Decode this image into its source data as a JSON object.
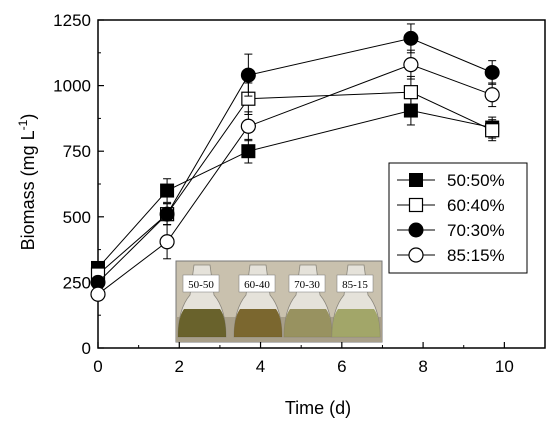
{
  "chart_data": {
    "type": "line",
    "xlabel": "Time (d)",
    "ylabel": "Biomass (mg L",
    "ylabel_unit_exponent": "-1",
    "ylabel_close": ")",
    "xlim": [
      0,
      11
    ],
    "ylim": [
      0,
      1250
    ],
    "xticks": [
      0,
      2,
      4,
      6,
      8,
      10
    ],
    "yticks": [
      0,
      250,
      500,
      750,
      1000,
      1250
    ],
    "x": [
      0,
      1.7,
      3.7,
      7.7,
      9.7
    ],
    "legend_position": "right",
    "grid": false,
    "series": [
      {
        "name": "50:50%",
        "marker": "filled-square",
        "values": [
          305,
          600,
          750,
          905,
          840
        ],
        "errors": [
          0,
          45,
          45,
          55,
          40
        ]
      },
      {
        "name": "60:40%",
        "marker": "open-square",
        "values": [
          280,
          510,
          950,
          975,
          830
        ],
        "errors": [
          0,
          40,
          60,
          60,
          40
        ]
      },
      {
        "name": "70:30%",
        "marker": "filled-circle",
        "values": [
          250,
          510,
          1040,
          1180,
          1050
        ],
        "errors": [
          0,
          40,
          80,
          55,
          45
        ]
      },
      {
        "name": "85:15%",
        "marker": "open-circle",
        "values": [
          205,
          405,
          845,
          1080,
          965
        ],
        "errors": [
          0,
          65,
          55,
          55,
          45
        ]
      }
    ],
    "inset": {
      "description": "photo",
      "labels": [
        "50-50",
        "60-40",
        "70-30",
        "85-15"
      ]
    }
  }
}
